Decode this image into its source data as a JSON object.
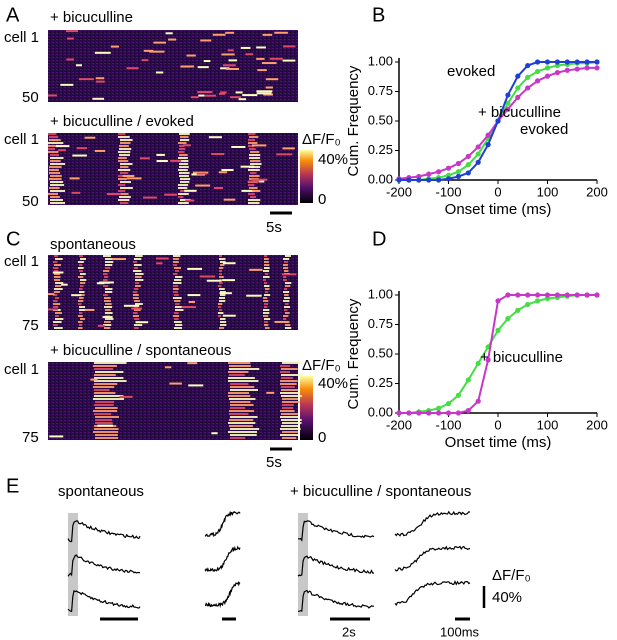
{
  "figure": {
    "panel_labels": [
      "A",
      "B",
      "C",
      "D",
      "E"
    ],
    "A": {
      "top_title": "+ bicuculline",
      "top_first": "cell 1",
      "top_last": "50",
      "bottom_title": "+ bicuculline / evoked",
      "bottom_first": "cell 1",
      "bottom_last": "50",
      "colorbar_title": "ΔF/F₀",
      "colorbar_max": "40%",
      "colorbar_min": "0",
      "scale": "5s"
    },
    "C": {
      "top_title": "spontaneous",
      "top_first": "cell 1",
      "top_last": "75",
      "bottom_title": "+ bicuculline / spontaneous",
      "bottom_first": "cell 1",
      "bottom_last": "75",
      "colorbar_title": "ΔF/F₀",
      "colorbar_max": "40%",
      "colorbar_min": "0",
      "scale": "5s"
    },
    "E": {
      "left_title": "spontaneous",
      "right_title": "+ bicuculline / spontaneous",
      "time_scale": "2s",
      "fast_scale": "100ms",
      "amp_title": "ΔF/F₀",
      "amp_scale": "40%"
    }
  },
  "chart_data": [
    {
      "type": "line",
      "xlabel": "Onset time (ms)",
      "ylabel": "Cum. Frequency",
      "annotations": [
        "evoked",
        "+ bicuculline",
        "evoked"
      ],
      "xlim": [
        -200,
        200
      ],
      "xticks": [
        -200,
        -100,
        0,
        100,
        200
      ],
      "ylim": [
        0,
        1
      ],
      "yticks": [
        {
          "value": 0,
          "label": "0.00"
        },
        {
          "value": 0.25,
          "label": "0.25"
        },
        {
          "value": 0.5,
          "label": "0.50"
        },
        {
          "value": 0.75,
          "label": "0.75"
        },
        {
          "value": 1,
          "label": "1.00"
        }
      ],
      "x": [
        -200,
        -180,
        -160,
        -140,
        -120,
        -100,
        -80,
        -60,
        -40,
        -20,
        0,
        20,
        40,
        60,
        80,
        100,
        120,
        140,
        160,
        180,
        200
      ],
      "series": [
        {
          "color": "#44dd44",
          "values": [
            0,
            0,
            0,
            0.01,
            0.02,
            0.04,
            0.07,
            0.13,
            0.22,
            0.35,
            0.5,
            0.65,
            0.78,
            0.87,
            0.92,
            0.95,
            0.97,
            0.98,
            0.99,
            0.99,
            1
          ]
        },
        {
          "color": "#c837c8",
          "values": [
            0.01,
            0.02,
            0.03,
            0.05,
            0.07,
            0.1,
            0.14,
            0.2,
            0.28,
            0.38,
            0.5,
            0.6,
            0.7,
            0.78,
            0.84,
            0.88,
            0.91,
            0.93,
            0.94,
            0.95,
            0.95
          ]
        },
        {
          "color": "#1f3fd1",
          "values": [
            0,
            0,
            0,
            0,
            0,
            0.01,
            0.03,
            0.06,
            0.15,
            0.3,
            0.5,
            0.72,
            0.88,
            0.97,
            1,
            1,
            1,
            1,
            1,
            1,
            1
          ]
        }
      ]
    },
    {
      "type": "line",
      "xlabel": "Onset time (ms)",
      "ylabel": "Cum. Frequency",
      "annotations": [
        "+ bicuculline"
      ],
      "xlim": [
        -200,
        200
      ],
      "xticks": [
        -200,
        -100,
        0,
        100,
        200
      ],
      "ylim": [
        0,
        1
      ],
      "yticks": [
        {
          "value": 0,
          "label": "0.00"
        },
        {
          "value": 0.25,
          "label": "0.25"
        },
        {
          "value": 0.5,
          "label": "0.50"
        },
        {
          "value": 0.75,
          "label": "0.75"
        },
        {
          "value": 1,
          "label": "1.00"
        }
      ],
      "x": [
        -200,
        -180,
        -160,
        -140,
        -120,
        -100,
        -80,
        -60,
        -40,
        -20,
        0,
        20,
        40,
        60,
        80,
        100,
        120,
        140,
        160,
        180,
        200
      ],
      "series": [
        {
          "color": "#44dd44",
          "values": [
            0,
            0,
            0.01,
            0.02,
            0.04,
            0.08,
            0.15,
            0.28,
            0.42,
            0.56,
            0.7,
            0.8,
            0.87,
            0.92,
            0.95,
            0.97,
            0.98,
            0.99,
            1,
            1,
            1
          ]
        },
        {
          "color": "#c837c8",
          "values": [
            0,
            0,
            0,
            0,
            0,
            0,
            0,
            0.02,
            0.1,
            0.45,
            0.95,
            1,
            1,
            1,
            1,
            1,
            1,
            1,
            1,
            1,
            1
          ]
        }
      ]
    }
  ]
}
